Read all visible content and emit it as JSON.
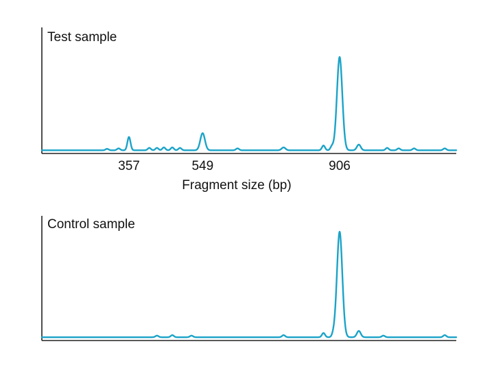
{
  "chart_data": [
    {
      "type": "line",
      "title": "Test sample",
      "xlabel": "Fragment size (bp)",
      "ylabel": "",
      "x_ticks": [
        "357",
        "549",
        "906"
      ],
      "xlim": [
        130,
        1210
      ],
      "ylim": [
        0,
        1
      ],
      "grid": false,
      "legend": "none",
      "color": "#1aa3c8",
      "baseline": 0.012,
      "peaks": [
        {
          "x": 357,
          "height": 0.14,
          "width": 4
        },
        {
          "x": 549,
          "height": 0.18,
          "width": 6
        },
        {
          "x": 906,
          "height": 0.98,
          "width": 7
        },
        {
          "x": 956,
          "height": 0.06,
          "width": 5
        },
        {
          "x": 864,
          "height": 0.05,
          "width": 4
        },
        {
          "x": 886,
          "height": 0.04,
          "width": 4
        },
        {
          "x": 760,
          "height": 0.03,
          "width": 5
        },
        {
          "x": 410,
          "height": 0.025,
          "width": 4
        },
        {
          "x": 430,
          "height": 0.025,
          "width": 4
        },
        {
          "x": 448,
          "height": 0.03,
          "width": 4
        },
        {
          "x": 470,
          "height": 0.03,
          "width": 4
        },
        {
          "x": 490,
          "height": 0.025,
          "width": 4
        },
        {
          "x": 640,
          "height": 0.02,
          "width": 4
        },
        {
          "x": 1030,
          "height": 0.025,
          "width": 4
        },
        {
          "x": 1060,
          "height": 0.02,
          "width": 4
        },
        {
          "x": 1100,
          "height": 0.02,
          "width": 4
        },
        {
          "x": 1180,
          "height": 0.02,
          "width": 4
        },
        {
          "x": 300,
          "height": 0.015,
          "width": 4
        },
        {
          "x": 330,
          "height": 0.02,
          "width": 4
        }
      ]
    },
    {
      "type": "line",
      "title": "Control sample",
      "xlabel": "",
      "ylabel": "",
      "x_ticks": [],
      "xlim": [
        130,
        1210
      ],
      "ylim": [
        0,
        1
      ],
      "grid": false,
      "legend": "none",
      "color": "#1aa3c8",
      "baseline": 0.012,
      "peaks": [
        {
          "x": 906,
          "height": 1.0,
          "width": 7
        },
        {
          "x": 956,
          "height": 0.06,
          "width": 5
        },
        {
          "x": 864,
          "height": 0.04,
          "width": 4
        },
        {
          "x": 890,
          "height": 0.025,
          "width": 4
        },
        {
          "x": 430,
          "height": 0.015,
          "width": 4
        },
        {
          "x": 470,
          "height": 0.02,
          "width": 4
        },
        {
          "x": 520,
          "height": 0.015,
          "width": 4
        },
        {
          "x": 760,
          "height": 0.02,
          "width": 4
        },
        {
          "x": 1020,
          "height": 0.015,
          "width": 4
        },
        {
          "x": 1180,
          "height": 0.02,
          "width": 4
        }
      ]
    }
  ]
}
